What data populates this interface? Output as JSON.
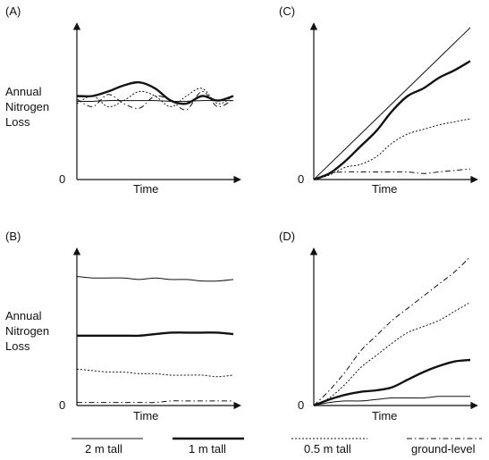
{
  "y_label": [
    "Annual",
    "Nitrogen",
    "Loss"
  ],
  "legend": [
    {
      "label": "2 m tall",
      "style": "thin"
    },
    {
      "label": "1 m tall",
      "style": "thick"
    },
    {
      "label": "0.5 m tall",
      "style": "dotted"
    },
    {
      "label": "ground-level",
      "style": "dashdot"
    }
  ],
  "chart_data": [
    {
      "panel": "(A)",
      "type": "line",
      "xlabel": "Time",
      "ylabel": "Annual Nitrogen Loss",
      "y_origin_label": "0",
      "xlim": [
        0,
        1
      ],
      "ylim": [
        0,
        1
      ],
      "x": [
        0,
        0.1,
        0.2,
        0.3,
        0.4,
        0.5,
        0.6,
        0.7,
        0.8,
        0.9,
        1.0
      ],
      "series": [
        {
          "name": "2 m tall",
          "style": "thin",
          "values": [
            0.515,
            0.515,
            0.52,
            0.52,
            0.52,
            0.52,
            0.515,
            0.515,
            0.52,
            0.52,
            0.52
          ]
        },
        {
          "name": "1 m tall",
          "style": "thick",
          "values": [
            0.55,
            0.55,
            0.58,
            0.62,
            0.64,
            0.6,
            0.52,
            0.5,
            0.55,
            0.52,
            0.55
          ]
        },
        {
          "name": "0.5 m tall",
          "style": "dotted",
          "values": [
            0.5,
            0.55,
            0.48,
            0.52,
            0.58,
            0.55,
            0.48,
            0.55,
            0.6,
            0.5,
            0.55
          ]
        },
        {
          "name": "ground-level",
          "style": "dashdot",
          "values": [
            0.53,
            0.48,
            0.56,
            0.5,
            0.47,
            0.55,
            0.52,
            0.46,
            0.58,
            0.48,
            0.53
          ]
        }
      ]
    },
    {
      "panel": "(B)",
      "type": "line",
      "xlabel": "Time",
      "ylabel": "Annual Nitrogen Loss",
      "y_origin_label": "0",
      "xlim": [
        0,
        1
      ],
      "ylim": [
        0,
        1
      ],
      "x": [
        0,
        0.1,
        0.2,
        0.3,
        0.4,
        0.5,
        0.6,
        0.7,
        0.8,
        0.9,
        1.0
      ],
      "series": [
        {
          "name": "2 m tall",
          "style": "thin",
          "values": [
            0.85,
            0.84,
            0.84,
            0.84,
            0.83,
            0.84,
            0.83,
            0.83,
            0.82,
            0.82,
            0.83
          ]
        },
        {
          "name": "1 m tall",
          "style": "thick",
          "values": [
            0.46,
            0.46,
            0.46,
            0.46,
            0.46,
            0.47,
            0.48,
            0.48,
            0.48,
            0.48,
            0.47
          ]
        },
        {
          "name": "0.5 m tall",
          "style": "dotted",
          "values": [
            0.24,
            0.23,
            0.22,
            0.22,
            0.21,
            0.21,
            0.2,
            0.2,
            0.2,
            0.19,
            0.2
          ]
        },
        {
          "name": "ground-level",
          "style": "dashdot",
          "values": [
            0.02,
            0.02,
            0.02,
            0.02,
            0.02,
            0.02,
            0.03,
            0.03,
            0.03,
            0.03,
            0.03
          ]
        }
      ]
    },
    {
      "panel": "(C)",
      "type": "line",
      "xlabel": "Time",
      "ylabel": "",
      "y_origin_label": "0",
      "xlim": [
        0,
        1
      ],
      "ylim": [
        0,
        1
      ],
      "x": [
        0,
        0.1,
        0.2,
        0.3,
        0.4,
        0.5,
        0.6,
        0.7,
        0.8,
        0.9,
        1.0
      ],
      "series": [
        {
          "name": "2 m tall",
          "style": "thin",
          "values": [
            0,
            0.1,
            0.2,
            0.3,
            0.4,
            0.5,
            0.6,
            0.7,
            0.8,
            0.9,
            1.0
          ]
        },
        {
          "name": "1 m tall",
          "style": "thick",
          "values": [
            0,
            0.04,
            0.12,
            0.22,
            0.32,
            0.45,
            0.55,
            0.6,
            0.67,
            0.72,
            0.78
          ]
        },
        {
          "name": "0.5 m tall",
          "style": "dotted",
          "values": [
            0,
            0.03,
            0.08,
            0.1,
            0.15,
            0.24,
            0.3,
            0.33,
            0.36,
            0.38,
            0.4
          ]
        },
        {
          "name": "ground-level",
          "style": "dashdot",
          "values": [
            0,
            0.04,
            0.05,
            0.05,
            0.05,
            0.05,
            0.05,
            0.04,
            0.05,
            0.06,
            0.07
          ]
        }
      ]
    },
    {
      "panel": "(D)",
      "type": "line",
      "xlabel": "Time",
      "ylabel": "",
      "y_origin_label": "0",
      "xlim": [
        0,
        1
      ],
      "ylim": [
        0,
        1
      ],
      "x": [
        0,
        0.1,
        0.2,
        0.3,
        0.4,
        0.5,
        0.6,
        0.7,
        0.8,
        0.9,
        1.0
      ],
      "series": [
        {
          "name": "2 m tall",
          "style": "thin",
          "values": [
            0,
            0.02,
            0.03,
            0.03,
            0.04,
            0.05,
            0.05,
            0.05,
            0.06,
            0.06,
            0.06
          ]
        },
        {
          "name": "1 m tall",
          "style": "thick",
          "values": [
            0,
            0.04,
            0.07,
            0.09,
            0.1,
            0.12,
            0.17,
            0.22,
            0.26,
            0.29,
            0.3
          ]
        },
        {
          "name": "0.5 m tall",
          "style": "dotted",
          "values": [
            0,
            0.05,
            0.14,
            0.25,
            0.33,
            0.41,
            0.48,
            0.52,
            0.56,
            0.62,
            0.68
          ]
        },
        {
          "name": "ground-level",
          "style": "dashdot",
          "values": [
            0,
            0.1,
            0.22,
            0.36,
            0.46,
            0.56,
            0.64,
            0.72,
            0.8,
            0.88,
            0.98
          ]
        }
      ]
    }
  ]
}
